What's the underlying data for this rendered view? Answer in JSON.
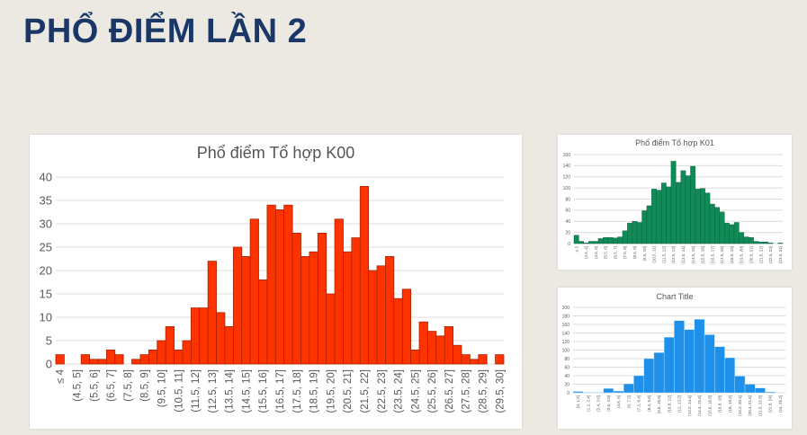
{
  "slide": {
    "title": "PHỔ ĐIỂM LẦN 2"
  },
  "chart_data": [
    {
      "type": "bar",
      "title": "Phổ điểm Tổ hợp K00",
      "color": "#ff3300",
      "edge_color": "#a82400",
      "ylim": [
        0,
        40
      ],
      "yticks": [
        0,
        5,
        10,
        15,
        20,
        25,
        30,
        35,
        40
      ],
      "grid": true,
      "label_every": 2,
      "tick_labels": [
        "≤ 4",
        "(4.5, 5]",
        "(5.5, 6]",
        "(6.5, 7]",
        "(7.5, 8]",
        "(8.5, 9]",
        "(9.5, 10]",
        "(10.5, 11]",
        "(11.5, 12]",
        "(12.5, 13]",
        "(13.5, 14]",
        "(14.5, 15]",
        "(15.5, 16]",
        "(16.5, 17]",
        "(17.5, 18]",
        "(18.5, 19]",
        "(19.5, 20]",
        "(20.5, 21]",
        "(21.5, 22]",
        "(22.5, 23]",
        "(23.5, 24]",
        "(24.5, 25]",
        "(25.5, 26]",
        "(26.5, 27]",
        "(27.5, 28]",
        "(28.5, 29]",
        "(29.5, 30]"
      ],
      "values": [
        2,
        0,
        0,
        2,
        1,
        1,
        3,
        2,
        0,
        1,
        2,
        3,
        5,
        8,
        3,
        5,
        12,
        12,
        22,
        11,
        8,
        25,
        23,
        31,
        18,
        34,
        33,
        34,
        28,
        23,
        24,
        28,
        15,
        31,
        24,
        27,
        38,
        20,
        21,
        23,
        14,
        16,
        3,
        9,
        7,
        6,
        8,
        4,
        2,
        1,
        2,
        0,
        2
      ]
    },
    {
      "type": "bar",
      "title": "Phổ điểm Tổ hợp K01",
      "color": "#108a57",
      "edge_color": "#0a5a38",
      "ylim": [
        0,
        160
      ],
      "yticks": [
        0,
        20,
        40,
        60,
        80,
        100,
        120,
        140,
        160
      ],
      "grid": true,
      "label_every": 2,
      "tick_labels": [
        "≤ 3",
        "(3.5, 4]",
        "(4.5, 5]",
        "(5.5, 6]",
        "(6.5, 7]",
        "(7.5, 8]",
        "(8.5, 9]",
        "(9.5, 10]",
        "(10.5, 11]",
        "(11.5, 12]",
        "(12.5, 13]",
        "(13.5, 14]",
        "(14.5, 15]",
        "(15.5, 16]",
        "(16.5, 17]",
        "(17.5, 18]",
        "(18.5, 19]",
        "(19.5, 20]",
        "(20.5, 21]",
        "(21.5, 22]",
        "(22.5, 23]",
        "(23.5, 24]"
      ],
      "values": [
        15,
        4,
        1,
        4,
        4,
        9,
        11,
        11,
        10,
        12,
        23,
        37,
        40,
        38,
        59,
        68,
        98,
        96,
        109,
        102,
        148,
        110,
        131,
        122,
        139,
        98,
        99,
        91,
        71,
        65,
        57,
        37,
        34,
        38,
        20,
        12,
        11,
        4,
        3,
        3,
        1,
        0,
        1
      ]
    },
    {
      "type": "bar",
      "title": "Chart Title",
      "color": "#1e90ea",
      "edge_color": "#bfe6ff",
      "ylim": [
        0,
        200
      ],
      "yticks": [
        0,
        20,
        40,
        60,
        80,
        100,
        120,
        140,
        160,
        180,
        200
      ],
      "grid": true,
      "label_every": 1,
      "tick_labels": [
        "[0, 1.2]",
        "(1.2, 2.4]",
        "(2.4, 3.6]",
        "(3.6, 4.8]",
        "(4.8, 6]",
        "(6, 7.2]",
        "(7.2, 8.4]",
        "(8.4, 9.6]",
        "(9.6, 10.8]",
        "(10.8, 12]",
        "(12, 13.2]",
        "(13.2, 14.4]",
        "(14.4, 15.6]",
        "(15.6, 16.8]",
        "(16.8, 18]",
        "(18, 19.2]",
        "(19.2, 20.4]",
        "(20.4, 21.6]",
        "(21.6, 22.8]",
        "(22.8, 24]",
        "(24, 25.2]"
      ],
      "values": [
        3,
        1,
        1,
        10,
        4,
        21,
        40,
        80,
        94,
        130,
        169,
        148,
        172,
        136,
        108,
        82,
        39,
        20,
        11,
        2,
        0
      ]
    }
  ]
}
